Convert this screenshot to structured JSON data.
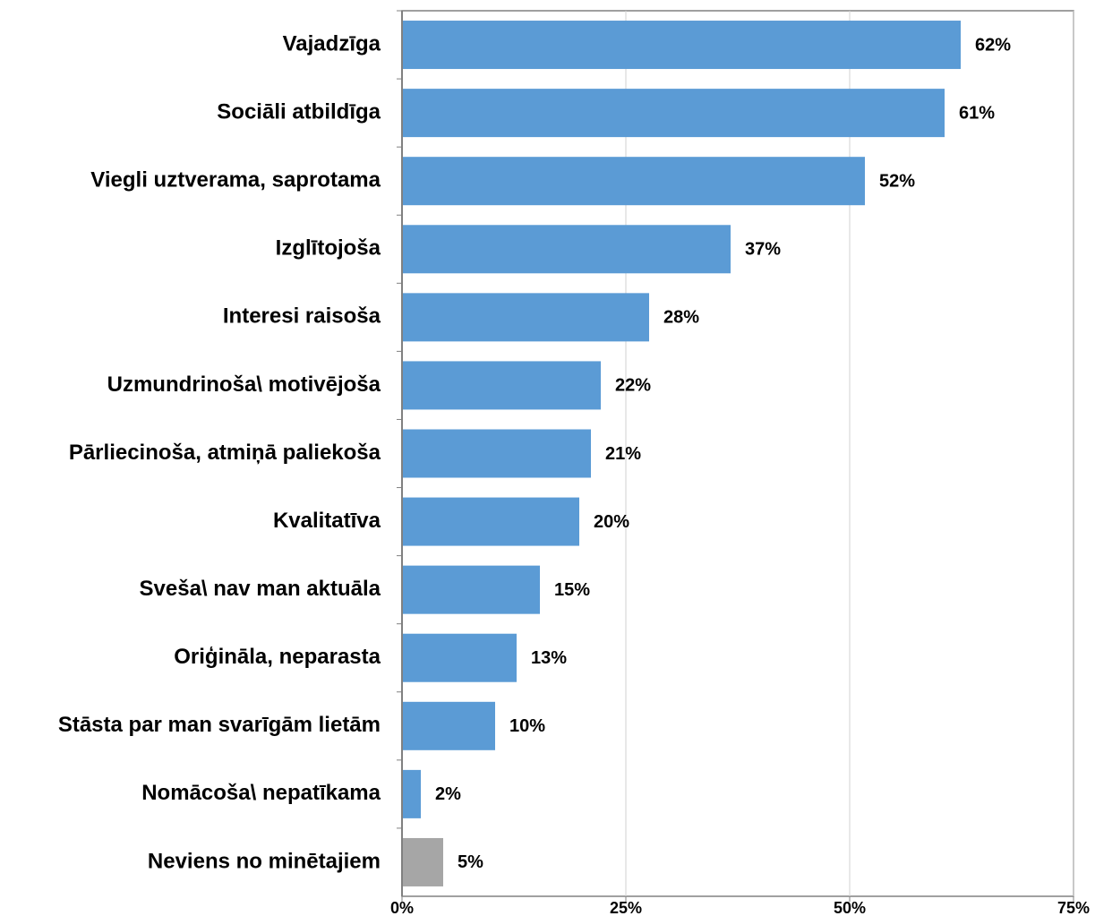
{
  "chart_data": {
    "type": "barh",
    "categories": [
      "Vajadzīga",
      "Sociāli atbildīga",
      "Viegli uztverama, saprotama",
      "Izglītojoša",
      "Interesi raisoša",
      "Uzmundrinoša\\ motivējoša",
      "Pārliecinoša, atmiņā paliekoša",
      "Kvalitatīva",
      "Sveša\\ nav man aktuāla",
      "Oriģināla, neparasta",
      "Stāsta par man svarīgām lietām",
      "Nomācoša\\ nepatīkama",
      "Neviens no minētajiem"
    ],
    "values": [
      62.4,
      60.6,
      51.7,
      36.7,
      27.6,
      22.2,
      21.1,
      19.8,
      15.4,
      12.8,
      10.4,
      2.1,
      4.6
    ],
    "value_labels": [
      "62%",
      "61%",
      "52%",
      "37%",
      "28%",
      "22%",
      "21%",
      "20%",
      "15%",
      "13%",
      "10%",
      "2%",
      "5%"
    ],
    "colors": [
      "#5b9bd5",
      "#5b9bd5",
      "#5b9bd5",
      "#5b9bd5",
      "#5b9bd5",
      "#5b9bd5",
      "#5b9bd5",
      "#5b9bd5",
      "#5b9bd5",
      "#5b9bd5",
      "#5b9bd5",
      "#5b9bd5",
      "#a6a6a6"
    ],
    "xlim": [
      0,
      75
    ],
    "xticks": [
      {
        "value": 0,
        "label": "0%"
      },
      {
        "value": 25,
        "label": "25%"
      },
      {
        "value": 50,
        "label": "50%"
      },
      {
        "value": 75,
        "label": "75%"
      }
    ],
    "grid": true
  }
}
